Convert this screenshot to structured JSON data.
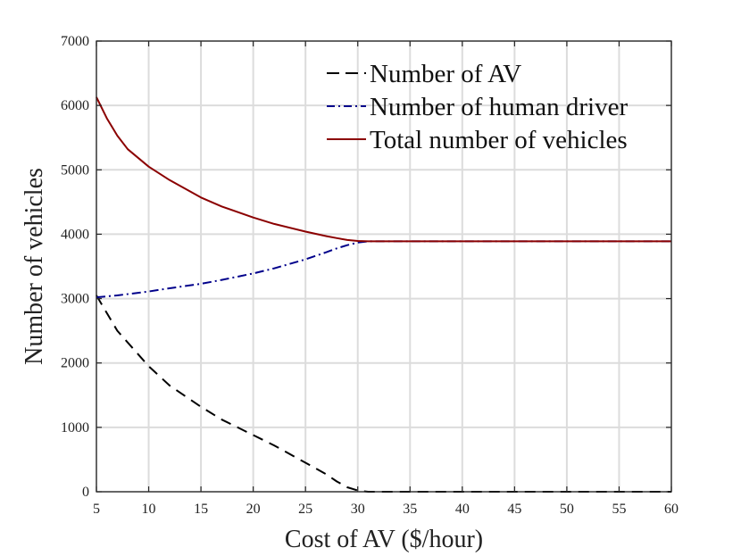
{
  "chart_data": {
    "type": "line",
    "title": "",
    "xlabel": "Cost of AV ($/hour)",
    "ylabel": "Number of vehicles",
    "xlim": [
      5,
      60
    ],
    "ylim": [
      0,
      7000
    ],
    "x_ticks": [
      "5",
      "10",
      "15",
      "20",
      "25",
      "30",
      "35",
      "40",
      "45",
      "50",
      "55",
      "60"
    ],
    "y_ticks": [
      "0",
      "1000",
      "2000",
      "3000",
      "4000",
      "5000",
      "6000",
      "7000"
    ],
    "grid": true,
    "legend_position": "top-right",
    "series": [
      {
        "name": "Number of AV",
        "color": "#000000",
        "style": "dashed",
        "x": [
          5,
          7,
          10,
          12,
          15,
          17,
          20,
          22,
          25,
          27,
          28,
          29,
          30,
          31,
          35,
          40,
          45,
          50,
          55,
          60
        ],
        "y": [
          3050,
          2500,
          1950,
          1650,
          1320,
          1120,
          880,
          720,
          450,
          270,
          160,
          70,
          20,
          0,
          0,
          0,
          0,
          0,
          0,
          0
        ]
      },
      {
        "name": "Number of human driver",
        "color": "#00008b",
        "style": "dashdot",
        "x": [
          5,
          7,
          10,
          12,
          15,
          17,
          20,
          22,
          25,
          27,
          28,
          29,
          30,
          31,
          35,
          40,
          45,
          50,
          55,
          60
        ],
        "y": [
          3020,
          3050,
          3110,
          3160,
          3230,
          3290,
          3390,
          3470,
          3610,
          3720,
          3780,
          3830,
          3870,
          3890,
          3890,
          3890,
          3890,
          3890,
          3890,
          3890
        ]
      },
      {
        "name": "Total number of vehicles",
        "color": "#8b0000",
        "style": "solid",
        "x": [
          5,
          6,
          7,
          8,
          10,
          12,
          15,
          17,
          20,
          22,
          25,
          27,
          28,
          29,
          30,
          31,
          35,
          40,
          45,
          50,
          55,
          60
        ],
        "y": [
          6130,
          5800,
          5530,
          5320,
          5050,
          4840,
          4570,
          4430,
          4260,
          4160,
          4040,
          3970,
          3940,
          3910,
          3895,
          3890,
          3890,
          3890,
          3890,
          3890,
          3890,
          3890
        ]
      }
    ]
  }
}
